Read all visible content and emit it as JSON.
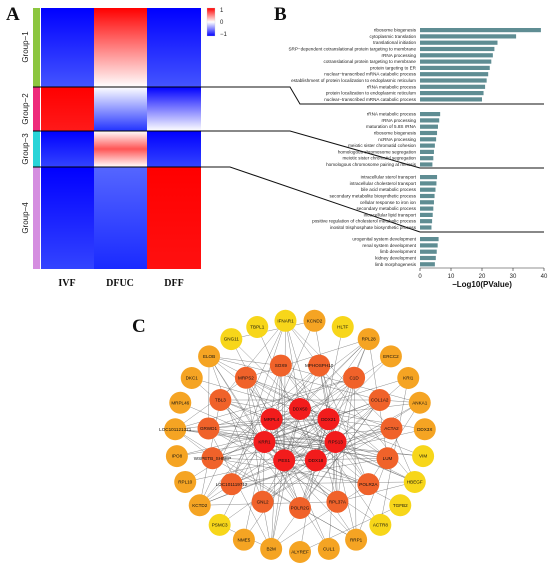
{
  "panels": {
    "a": "A",
    "b": "B",
    "c": "C"
  },
  "heatmap": {
    "groups": [
      "Group−1",
      "Group−2",
      "Group−3",
      "Group−4"
    ],
    "columns": [
      "IVF",
      "DFUC",
      "DFF"
    ],
    "scale_ticks": [
      "1",
      "0",
      "−1"
    ],
    "colors": {
      "high": "#ff0000",
      "mid": "#ffffff",
      "low": "#0000ff",
      "group1": "#8cc63f",
      "group2": "#ee2a7b",
      "group3": "#2ad4d8",
      "group4": "#d58ee0"
    }
  },
  "chart_data": {
    "type": "bar",
    "orientation": "horizontal",
    "xlabel": "−Log10(PValue)",
    "xlim": [
      0,
      40
    ],
    "xticks": [
      0,
      10,
      20,
      30,
      40
    ],
    "bar_color": "#5f8d93",
    "groups": [
      {
        "terms": [
          {
            "label": "ribosome biogenesis",
            "value": 39
          },
          {
            "label": "cytoplasmic translation",
            "value": 31
          },
          {
            "label": "translational initiation",
            "value": 25
          },
          {
            "label": "SRP−dependent cotranslational protein targeting to membrane",
            "value": 24
          },
          {
            "label": "rRNA processing",
            "value": 23.5
          },
          {
            "label": "cotranslational protein targeting to membrane",
            "value": 23
          },
          {
            "label": "protein targeting to ER",
            "value": 22.5
          },
          {
            "label": "nuclear−transcribed mRNA catabolic process",
            "value": 22
          },
          {
            "label": "establishment of protein localization to endoplasmic reticulum",
            "value": 21.5
          },
          {
            "label": "rRNA metabolic process",
            "value": 21
          },
          {
            "label": "protein localization to endoplasmic reticulum",
            "value": 20.5
          },
          {
            "label": "nuclear−transcribed mRNA catabolic process",
            "value": 20
          }
        ]
      },
      {
        "terms": [
          {
            "label": "rRNA metabolic process",
            "value": 6.5
          },
          {
            "label": "rRNA processing",
            "value": 6.2
          },
          {
            "label": "maturation of 5.8S rRNA",
            "value": 5.8
          },
          {
            "label": "ribosome biogenesis",
            "value": 5.5
          },
          {
            "label": "ncRNA processing",
            "value": 5.2
          },
          {
            "label": "meiotic sister chromatid cohesion",
            "value": 4.8
          },
          {
            "label": "homologous chromosome segregation",
            "value": 4.5
          },
          {
            "label": "meiotic sister chromatid segregation",
            "value": 4.3
          },
          {
            "label": "homologous chromosome pairing at meiosis",
            "value": 4
          }
        ]
      },
      {
        "terms": [
          {
            "label": "intracellular sterol transport",
            "value": 5.5
          },
          {
            "label": "intracellular cholesterol transport",
            "value": 5.3
          },
          {
            "label": "bile acid metabolic process",
            "value": 5
          },
          {
            "label": "secondary metabolite biosynthetic process",
            "value": 4.7
          },
          {
            "label": "cellular response to iron ion",
            "value": 4.5
          },
          {
            "label": "secondary metabolic process",
            "value": 4.3
          },
          {
            "label": "intracellular lipid transport",
            "value": 4.1
          },
          {
            "label": "positive regulation of cholesterol metabolic process",
            "value": 3.9
          },
          {
            "label": "inositol trisphosphate biosynthetic process",
            "value": 3.7
          }
        ]
      },
      {
        "terms": [
          {
            "label": "urogenital system development",
            "value": 6
          },
          {
            "label": "renal system development",
            "value": 5.7
          },
          {
            "label": "limb development",
            "value": 5.4
          },
          {
            "label": "kidney development",
            "value": 5.1
          },
          {
            "label": "limb morphogenesis",
            "value": 4.8
          }
        ]
      }
    ]
  },
  "network": {
    "core": [
      {
        "id": "DDX50",
        "level": 1
      },
      {
        "id": "DDX21",
        "level": 1
      },
      {
        "id": "RPS13",
        "level": 1
      },
      {
        "id": "DDX18",
        "level": 1
      },
      {
        "id": "PES1",
        "level": 1
      },
      {
        "id": "KRR1",
        "level": 1
      },
      {
        "id": "MRPL4",
        "level": 1
      }
    ],
    "middle": [
      {
        "id": "MPHOSPH10",
        "level": 2
      },
      {
        "id": "C1D",
        "level": 2
      },
      {
        "id": "COL1A2",
        "level": 2
      },
      {
        "id": "ACTA2",
        "level": 2
      },
      {
        "id": "LUM",
        "level": 2
      },
      {
        "id": "POLR2A",
        "level": 2
      },
      {
        "id": "RPL37A",
        "level": 2
      },
      {
        "id": "POLR2G",
        "level": 2
      },
      {
        "id": "GNL2",
        "level": 2
      },
      {
        "id": "LOC101119712",
        "level": 2
      },
      {
        "id": "WSPETB_SHEEP",
        "level": 2
      },
      {
        "id": "GRWD1",
        "level": 2
      },
      {
        "id": "TBL3",
        "level": 2
      },
      {
        "id": "MRPS2",
        "level": 2
      },
      {
        "id": "SOX9",
        "level": 2
      }
    ],
    "outer": [
      {
        "id": "KCND2",
        "level": 3
      },
      {
        "id": "HLTF",
        "level": 4
      },
      {
        "id": "RPL28",
        "level": 3
      },
      {
        "id": "ERCC2",
        "level": 3
      },
      {
        "id": "KRI1",
        "level": 3
      },
      {
        "id": "ANKA1",
        "level": 3
      },
      {
        "id": "DDX3X",
        "level": 3
      },
      {
        "id": "VIM",
        "level": 4
      },
      {
        "id": "HBEGF",
        "level": 4
      },
      {
        "id": "TGFB2",
        "level": 4
      },
      {
        "id": "ACTR8",
        "level": 4
      },
      {
        "id": "RRP1",
        "level": 3
      },
      {
        "id": "CUL1",
        "level": 3
      },
      {
        "id": "ALYREF",
        "level": 3
      },
      {
        "id": "B2M",
        "level": 3
      },
      {
        "id": "NME5",
        "level": 3
      },
      {
        "id": "PSMC3",
        "level": 4
      },
      {
        "id": "KCTD2",
        "level": 3
      },
      {
        "id": "RPL10",
        "level": 3
      },
      {
        "id": "IPO8",
        "level": 3
      },
      {
        "id": "LOC101121371",
        "level": 3
      },
      {
        "id": "MRPL46",
        "level": 3
      },
      {
        "id": "DKC1",
        "level": 3
      },
      {
        "id": "ELOB",
        "level": 3
      },
      {
        "id": "GNG11",
        "level": 4
      },
      {
        "id": "TBPL1",
        "level": 4
      },
      {
        "id": "IFNAR1",
        "level": 4
      }
    ],
    "colors": {
      "level1": "#f21c1c",
      "level2": "#f0622a",
      "level3": "#f5a423",
      "level4": "#f7d61a"
    }
  }
}
